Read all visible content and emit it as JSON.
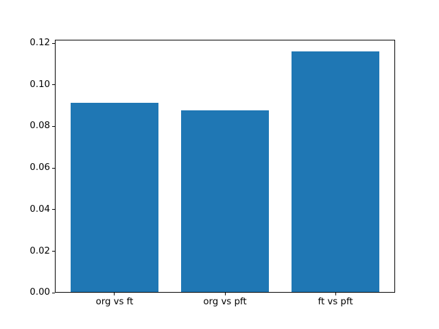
{
  "chart_data": {
    "type": "bar",
    "title": "",
    "xlabel": "",
    "ylabel": "",
    "categories": [
      "org vs ft",
      "org vs pft",
      "ft vs pft"
    ],
    "values": [
      0.0915,
      0.0877,
      0.116
    ],
    "ylim": [
      0,
      0.1218
    ],
    "yticks": [
      0.0,
      0.02,
      0.04,
      0.06,
      0.08,
      0.1,
      0.12
    ],
    "ytick_labels": [
      "0.00",
      "0.02",
      "0.04",
      "0.06",
      "0.08",
      "0.10",
      "0.12"
    ],
    "grid": false,
    "legend": null,
    "bar_color": "#1f77b4",
    "background_color": "#ffffff",
    "spine_color": "#000000"
  }
}
